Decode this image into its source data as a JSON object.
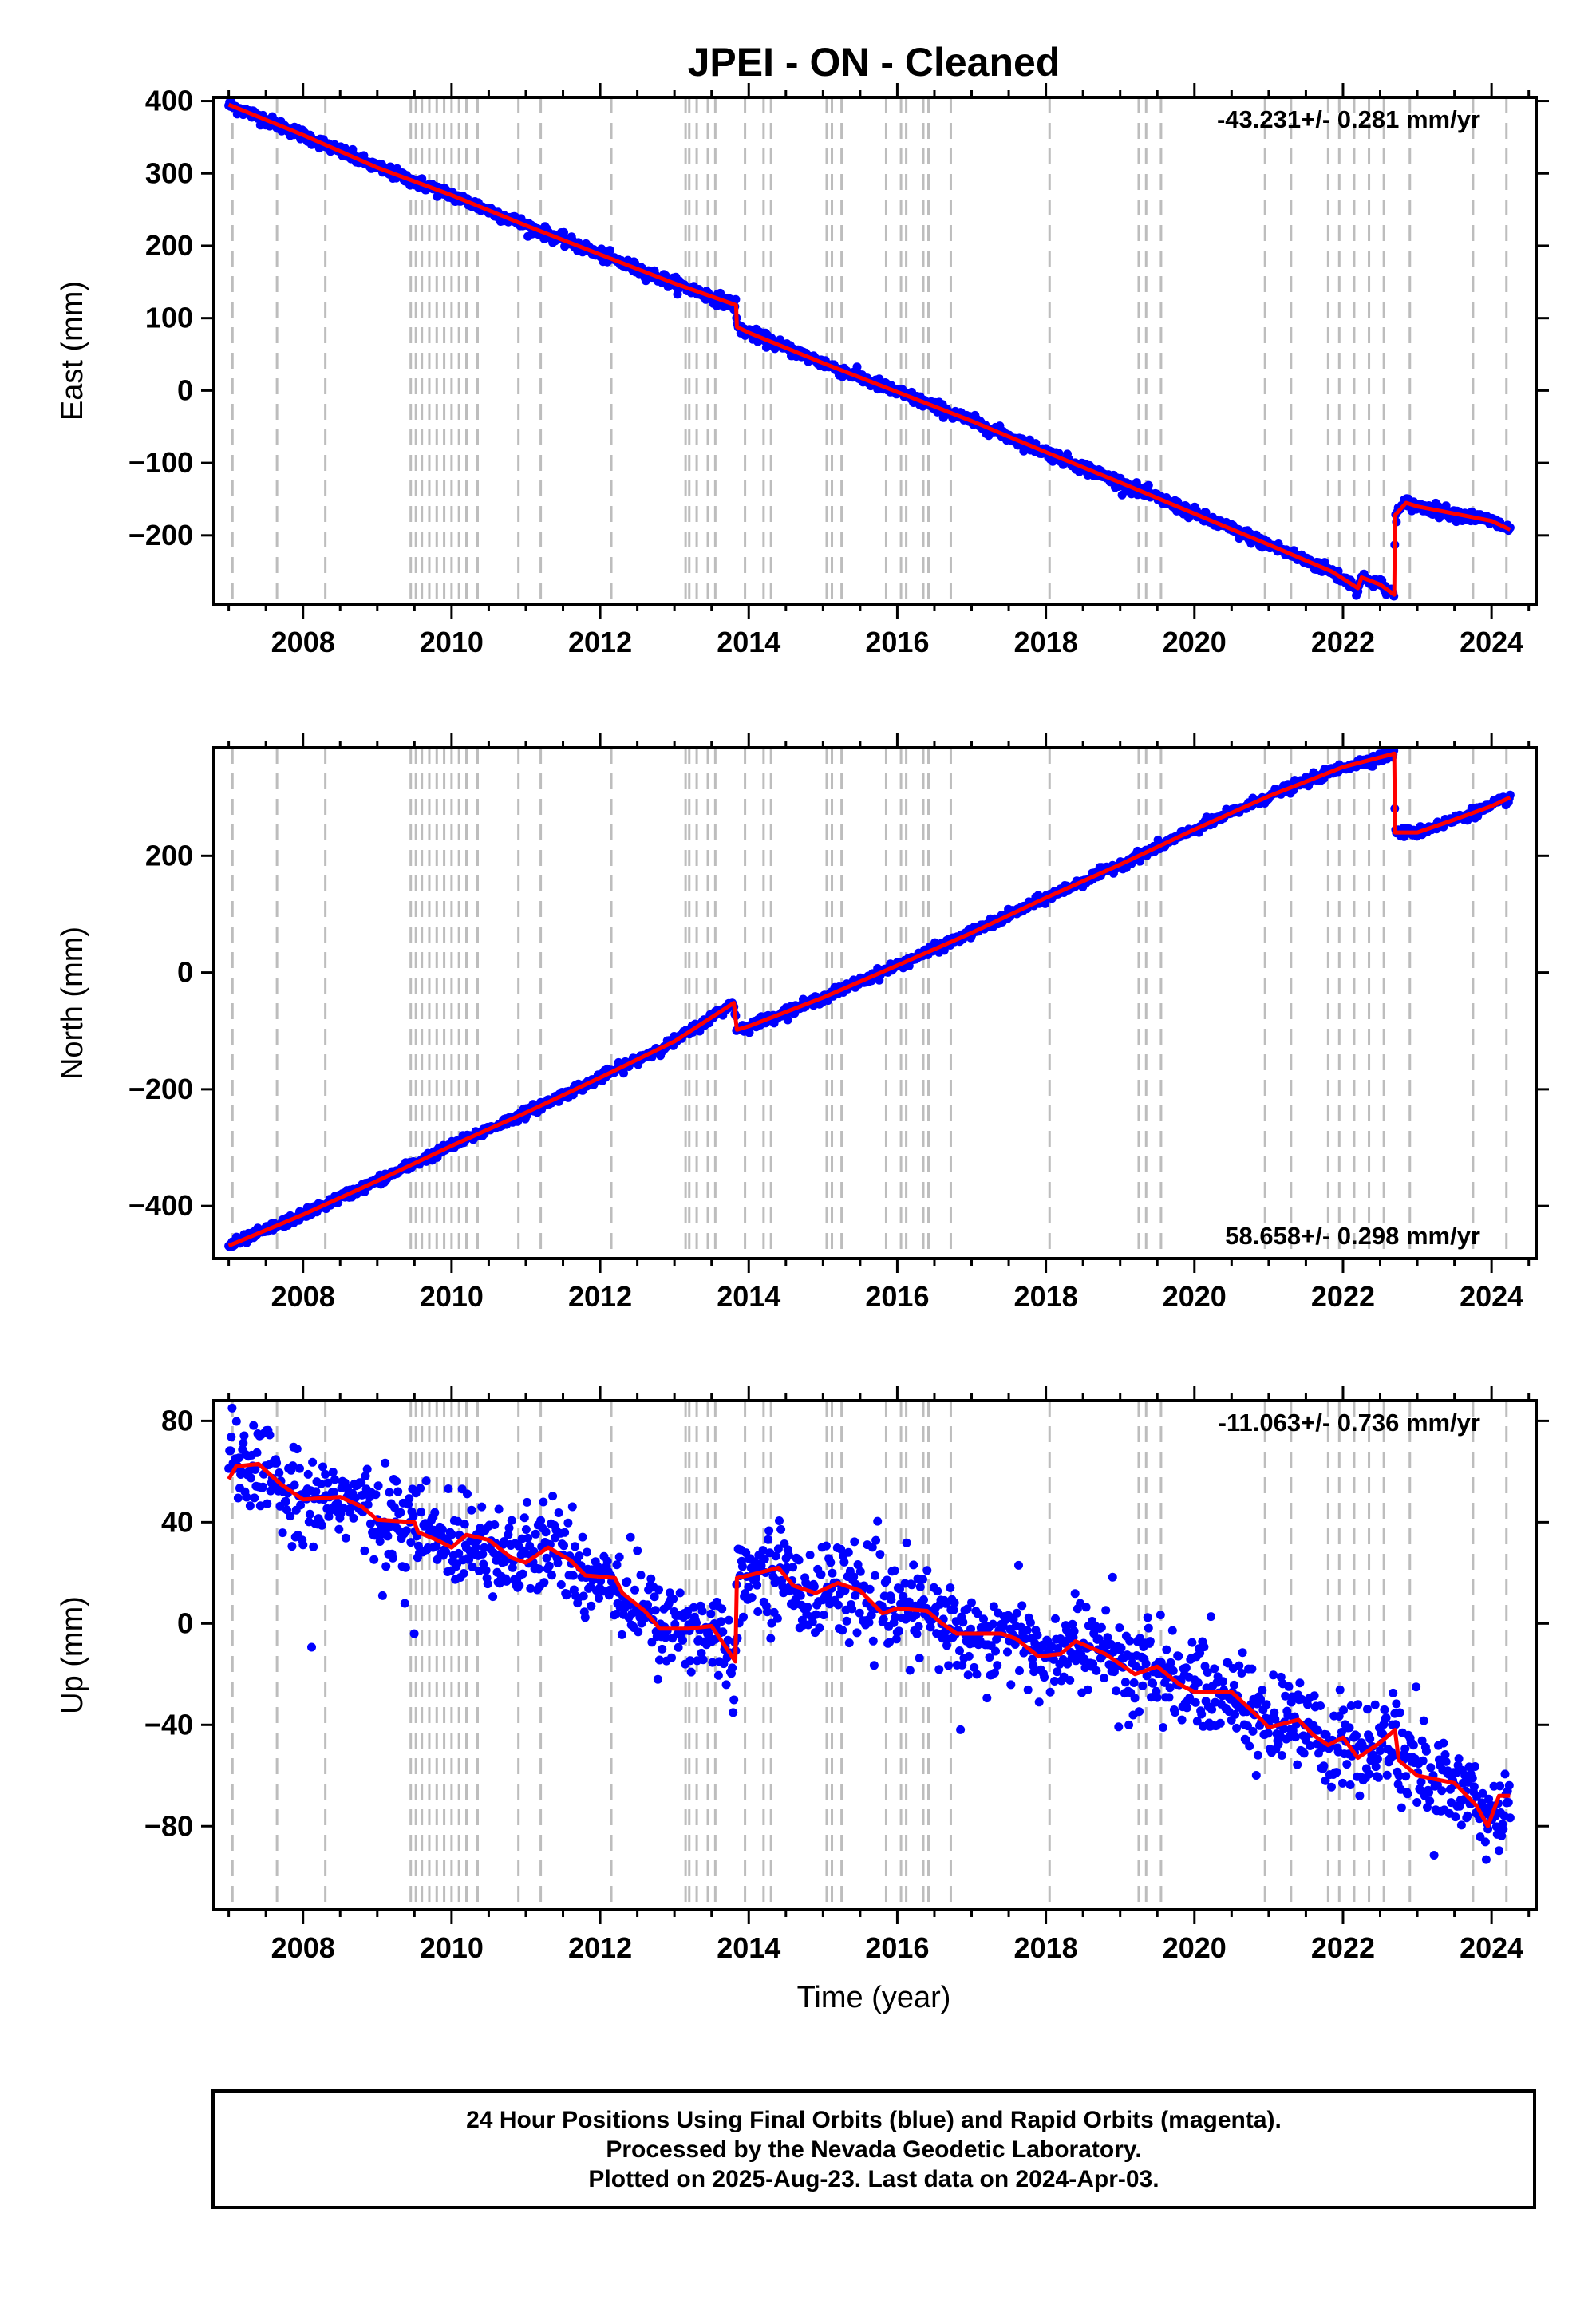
{
  "title": "JPEI  - ON - Cleaned",
  "xlabel": "Time (year)",
  "footer": {
    "line1": "24 Hour Positions Using Final Orbits (blue) and Rapid Orbits (magenta).",
    "line2": "Processed by the Nevada Geodetic Laboratory.",
    "line3": "Plotted on 2025-Aug-23. Last data on 2024-Apr-03."
  },
  "colors": {
    "final_orbits": "#0000ff",
    "model": "#ff0000",
    "events": "#bdbdbd"
  },
  "chart_data": [
    {
      "type": "scatter",
      "panel": "east",
      "ylabel": "East (mm)",
      "rate": "-43.231+/- 0.281 mm/yr",
      "rate_position": "top-right",
      "xlim": [
        2006.8,
        2024.6
      ],
      "ylim": [
        -295,
        405
      ],
      "yticks": [
        -200,
        -100,
        0,
        100,
        200,
        300,
        400
      ],
      "xticks": [
        2008,
        2010,
        2012,
        2014,
        2016,
        2018,
        2020,
        2022,
        2024
      ],
      "model_line": [
        [
          2007.0,
          395
        ],
        [
          2008.0,
          353
        ],
        [
          2009.0,
          308
        ],
        [
          2010.0,
          270
        ],
        [
          2011.0,
          228
        ],
        [
          2012.0,
          188
        ],
        [
          2013.0,
          148
        ],
        [
          2013.83,
          118
        ],
        [
          2013.84,
          88
        ],
        [
          2014.0,
          80
        ],
        [
          2015.0,
          38
        ],
        [
          2016.0,
          -2
        ],
        [
          2017.0,
          -42
        ],
        [
          2018.0,
          -85
        ],
        [
          2019.0,
          -127
        ],
        [
          2020.0,
          -170
        ],
        [
          2021.0,
          -213
        ],
        [
          2021.85,
          -250
        ],
        [
          2022.2,
          -273
        ],
        [
          2022.25,
          -258
        ],
        [
          2022.5,
          -268
        ],
        [
          2022.69,
          -282
        ],
        [
          2022.7,
          -172
        ],
        [
          2022.85,
          -155
        ],
        [
          2023.0,
          -160
        ],
        [
          2023.5,
          -170
        ],
        [
          2024.0,
          -180
        ],
        [
          2024.25,
          -192
        ]
      ],
      "noise_mm": 4
    },
    {
      "type": "scatter",
      "panel": "north",
      "ylabel": "North (mm)",
      "rate": "58.658+/- 0.298 mm/yr",
      "rate_position": "bottom-right",
      "xlim": [
        2006.8,
        2024.6
      ],
      "ylim": [
        -490,
        385
      ],
      "yticks": [
        -400,
        -200,
        0,
        200
      ],
      "xticks": [
        2008,
        2010,
        2012,
        2014,
        2016,
        2018,
        2020,
        2022,
        2024
      ],
      "model_line": [
        [
          2007.0,
          -468
        ],
        [
          2008.0,
          -415
        ],
        [
          2009.0,
          -357
        ],
        [
          2010.0,
          -297
        ],
        [
          2011.0,
          -240
        ],
        [
          2012.0,
          -180
        ],
        [
          2013.0,
          -118
        ],
        [
          2013.8,
          -52
        ],
        [
          2013.84,
          -98
        ],
        [
          2014.0,
          -92
        ],
        [
          2015.0,
          -43
        ],
        [
          2016.0,
          12
        ],
        [
          2017.0,
          68
        ],
        [
          2018.0,
          128
        ],
        [
          2019.0,
          185
        ],
        [
          2020.0,
          245
        ],
        [
          2021.0,
          302
        ],
        [
          2022.0,
          352
        ],
        [
          2022.69,
          375
        ],
        [
          2022.7,
          240
        ],
        [
          2023.0,
          240
        ],
        [
          2023.5,
          262
        ],
        [
          2024.0,
          285
        ],
        [
          2024.25,
          300
        ]
      ],
      "noise_mm": 4
    },
    {
      "type": "scatter",
      "panel": "up",
      "ylabel": "Up (mm)",
      "rate": "-11.063+/- 0.736 mm/yr",
      "rate_position": "top-right",
      "xlim": [
        2006.8,
        2024.6
      ],
      "ylim": [
        -113,
        88
      ],
      "yticks": [
        -80,
        -40,
        0,
        40,
        80
      ],
      "xticks": [
        2008,
        2010,
        2012,
        2014,
        2016,
        2018,
        2020,
        2022,
        2024
      ],
      "model_line": [
        [
          2007.0,
          57
        ],
        [
          2007.1,
          62
        ],
        [
          2007.4,
          63
        ],
        [
          2007.7,
          55
        ],
        [
          2008.0,
          49
        ],
        [
          2008.5,
          50
        ],
        [
          2008.8,
          46
        ],
        [
          2009.0,
          41
        ],
        [
          2009.5,
          40
        ],
        [
          2009.55,
          36
        ],
        [
          2009.8,
          33
        ],
        [
          2010.0,
          30
        ],
        [
          2010.2,
          35
        ],
        [
          2010.5,
          33
        ],
        [
          2010.8,
          26
        ],
        [
          2011.0,
          24
        ],
        [
          2011.3,
          30
        ],
        [
          2011.6,
          25
        ],
        [
          2011.8,
          19
        ],
        [
          2012.2,
          18
        ],
        [
          2012.3,
          12
        ],
        [
          2012.6,
          5
        ],
        [
          2012.8,
          -2
        ],
        [
          2013.2,
          -2
        ],
        [
          2013.5,
          -1
        ],
        [
          2013.82,
          -15
        ],
        [
          2013.84,
          18
        ],
        [
          2014.0,
          19
        ],
        [
          2014.4,
          22
        ],
        [
          2014.6,
          15
        ],
        [
          2014.9,
          12
        ],
        [
          2015.2,
          16
        ],
        [
          2015.5,
          13
        ],
        [
          2015.8,
          4
        ],
        [
          2016.0,
          6
        ],
        [
          2016.4,
          5
        ],
        [
          2016.6,
          0
        ],
        [
          2016.8,
          -4
        ],
        [
          2017.4,
          -4
        ],
        [
          2017.6,
          -6
        ],
        [
          2017.9,
          -13
        ],
        [
          2018.2,
          -12
        ],
        [
          2018.4,
          -7
        ],
        [
          2018.8,
          -12
        ],
        [
          2019.2,
          -20
        ],
        [
          2019.5,
          -17
        ],
        [
          2019.8,
          -24
        ],
        [
          2020.0,
          -27
        ],
        [
          2020.5,
          -27
        ],
        [
          2020.9,
          -38
        ],
        [
          2021.0,
          -41
        ],
        [
          2021.4,
          -38
        ],
        [
          2021.6,
          -44
        ],
        [
          2021.8,
          -48
        ],
        [
          2022.0,
          -45
        ],
        [
          2022.2,
          -53
        ],
        [
          2022.5,
          -47
        ],
        [
          2022.7,
          -42
        ],
        [
          2022.75,
          -54
        ],
        [
          2023.0,
          -60
        ],
        [
          2023.5,
          -63
        ],
        [
          2023.8,
          -72
        ],
        [
          2023.95,
          -80
        ],
        [
          2024.1,
          -68
        ],
        [
          2024.25,
          -68
        ]
      ],
      "noise_mm": 9
    }
  ],
  "event_lines": [
    2007.05,
    2007.65,
    2008.3,
    2009.45,
    2009.52,
    2009.6,
    2009.7,
    2009.8,
    2009.9,
    2010.0,
    2010.1,
    2010.2,
    2010.35,
    2010.9,
    2011.2,
    2012.15,
    2013.15,
    2013.2,
    2013.3,
    2013.45,
    2013.55,
    2013.95,
    2014.2,
    2014.3,
    2015.05,
    2015.12,
    2015.25,
    2015.85,
    2016.05,
    2016.12,
    2016.35,
    2016.42,
    2016.72,
    2018.05,
    2019.25,
    2019.35,
    2019.55,
    2020.95,
    2021.3,
    2021.8,
    2021.95,
    2022.15,
    2022.35,
    2022.55,
    2022.9,
    2023.75,
    2024.2
  ]
}
